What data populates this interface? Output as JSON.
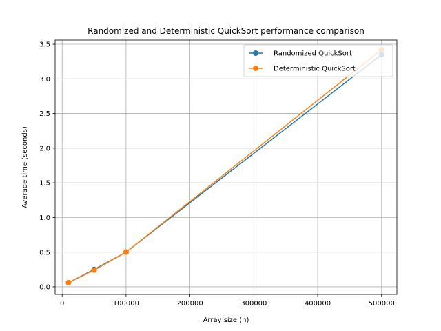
{
  "chart_data": {
    "type": "line",
    "title": "Randomized and Deterministic QuickSort performance comparison",
    "xlabel": "Array size (n)",
    "ylabel": "Average time (seconds)",
    "xlim": [
      -11000,
      524000
    ],
    "ylim": [
      -0.11,
      3.56
    ],
    "x_ticks": [
      0,
      100000,
      200000,
      300000,
      400000,
      500000
    ],
    "x_tick_labels": [
      "0",
      "100000",
      "200000",
      "300000",
      "400000",
      "500000"
    ],
    "y_ticks": [
      0.0,
      0.5,
      1.0,
      1.5,
      2.0,
      2.5,
      3.0,
      3.5
    ],
    "y_tick_labels": [
      "0.0",
      "0.5",
      "1.0",
      "1.5",
      "2.0",
      "2.5",
      "3.0",
      "3.5"
    ],
    "grid": true,
    "legend_position": "top-right",
    "x": [
      10000,
      50000,
      100000,
      500000
    ],
    "series": [
      {
        "name": "Randomized QuickSort",
        "color": "#1f77b4",
        "marker": "circle",
        "values": [
          0.06,
          0.25,
          0.5,
          3.35
        ]
      },
      {
        "name": "Deterministic QuickSort",
        "color": "#ff7f0e",
        "marker": "circle",
        "values": [
          0.06,
          0.24,
          0.5,
          3.42
        ]
      }
    ]
  }
}
